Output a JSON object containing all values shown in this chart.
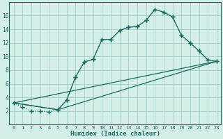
{
  "xlabel": "Humidex (Indice chaleur)",
  "bg_color": "#d4eeea",
  "grid_color": "#aad4ce",
  "line_color": "#1a6b5a",
  "xlim": [
    -0.5,
    23.5
  ],
  "ylim": [
    0,
    18
  ],
  "xticks": [
    0,
    1,
    2,
    3,
    4,
    5,
    6,
    7,
    8,
    9,
    10,
    11,
    12,
    13,
    14,
    15,
    16,
    17,
    18,
    19,
    20,
    21,
    22,
    23
  ],
  "yticks": [
    2,
    4,
    6,
    8,
    10,
    12,
    14,
    16
  ],
  "line1_x": [
    0,
    1,
    2,
    3,
    4,
    5,
    6,
    7,
    8,
    9,
    10,
    11,
    12,
    13,
    14,
    15,
    16,
    17,
    18,
    19,
    20,
    21,
    22,
    23
  ],
  "line1_y": [
    3.2,
    2.6,
    2.0,
    2.0,
    1.9,
    2.2,
    3.6,
    7.0,
    9.2,
    9.6,
    12.5,
    12.5,
    13.8,
    14.3,
    14.4,
    15.3,
    16.9,
    16.5,
    15.8,
    13.1,
    12.0,
    10.8,
    9.5,
    9.3
  ],
  "line2_x": [
    0,
    5,
    6,
    7,
    8,
    9,
    10,
    11,
    12,
    13,
    14,
    15,
    16,
    17,
    18,
    19,
    20,
    21,
    22,
    23
  ],
  "line2_y": [
    3.2,
    2.2,
    3.6,
    7.0,
    9.2,
    9.6,
    12.5,
    12.5,
    13.8,
    14.3,
    14.4,
    15.3,
    16.9,
    16.5,
    15.8,
    13.1,
    12.0,
    10.8,
    9.5,
    9.3
  ],
  "line3_x": [
    0,
    5,
    23
  ],
  "line3_y": [
    3.2,
    2.2,
    9.3
  ],
  "line4_x": [
    0,
    23
  ],
  "line4_y": [
    3.2,
    9.3
  ],
  "marker": "+",
  "marker_size": 4,
  "linewidth": 0.9
}
